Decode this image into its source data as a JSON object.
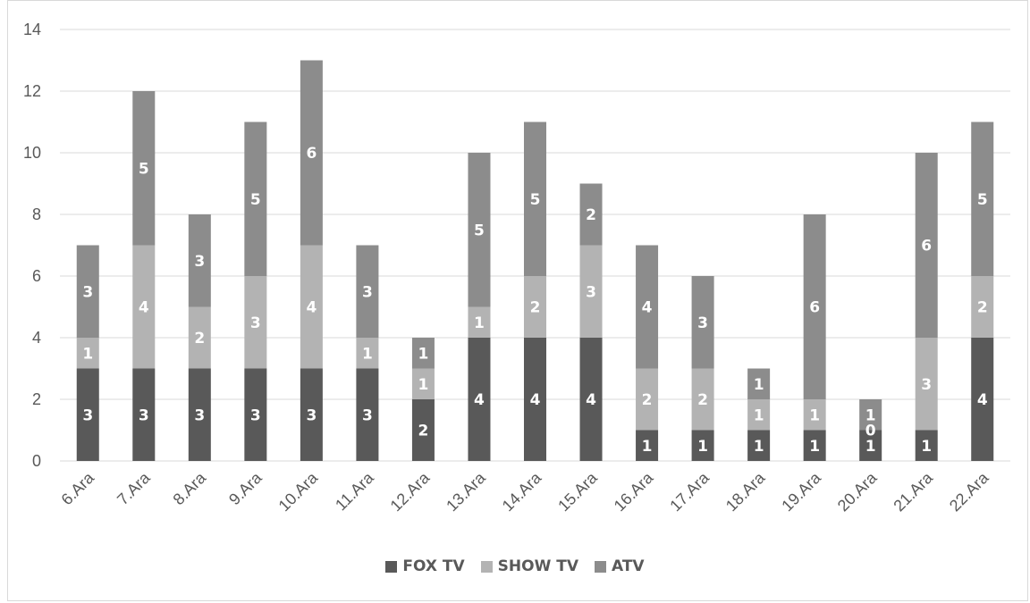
{
  "chart_data": {
    "type": "bar",
    "stacked": true,
    "title": "",
    "xlabel": "",
    "ylabel": "",
    "ylim": [
      0,
      14
    ],
    "yticks": [
      0,
      2,
      4,
      6,
      8,
      10,
      12,
      14
    ],
    "grid": true,
    "legend_position": "bottom",
    "categories": [
      "6.Ara",
      "7.Ara",
      "8.Ara",
      "9.Ara",
      "10.Ara",
      "11.Ara",
      "12.Ara",
      "13.Ara",
      "14.Ara",
      "15.Ara",
      "16.Ara",
      "17.Ara",
      "18.Ara",
      "19.Ara",
      "20.Ara",
      "21.Ara",
      "22.Ara"
    ],
    "series": [
      {
        "name": "FOX TV",
        "color": "#595959",
        "values": [
          3,
          3,
          3,
          3,
          3,
          3,
          2,
          4,
          4,
          4,
          1,
          1,
          1,
          1,
          1,
          1,
          4
        ]
      },
      {
        "name": "SHOW TV",
        "color": "#b3b3b3",
        "values": [
          1,
          4,
          2,
          3,
          4,
          1,
          1,
          1,
          2,
          3,
          2,
          2,
          1,
          1,
          0,
          3,
          2
        ]
      },
      {
        "name": "ATV",
        "color": "#8c8c8c",
        "values": [
          3,
          5,
          3,
          5,
          6,
          3,
          1,
          5,
          5,
          2,
          4,
          3,
          1,
          6,
          1,
          6,
          5
        ]
      }
    ]
  }
}
